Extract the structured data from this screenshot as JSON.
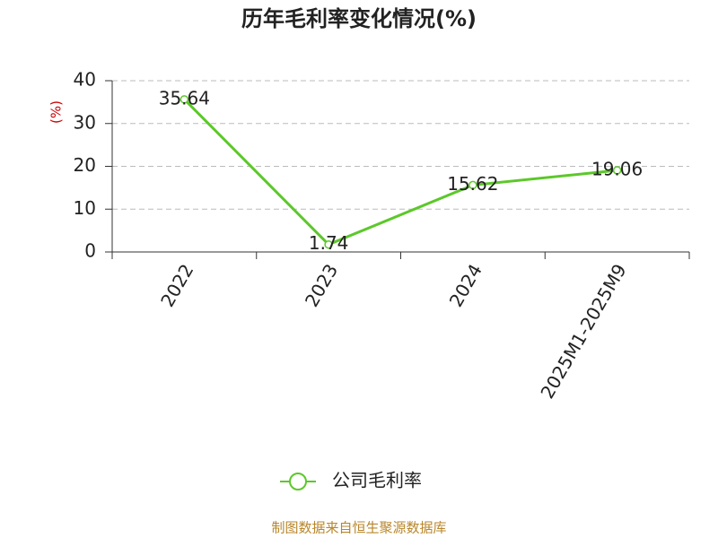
{
  "chart_data": {
    "type": "line",
    "title": "历年毛利率变化情况(%)",
    "y_label": "(%)",
    "categories": [
      "2022",
      "2023",
      "2024",
      "2025M1-2025M9"
    ],
    "series": [
      {
        "name": "公司毛利率",
        "color": "#5cc82a",
        "values": [
          35.64,
          1.74,
          15.62,
          19.06
        ]
      }
    ],
    "ylim": [
      0,
      40
    ],
    "yticks": [
      0,
      10,
      20,
      30,
      40
    ],
    "grid": true,
    "legend": "bottom",
    "source": "制图数据来自恒生聚源数据库"
  }
}
